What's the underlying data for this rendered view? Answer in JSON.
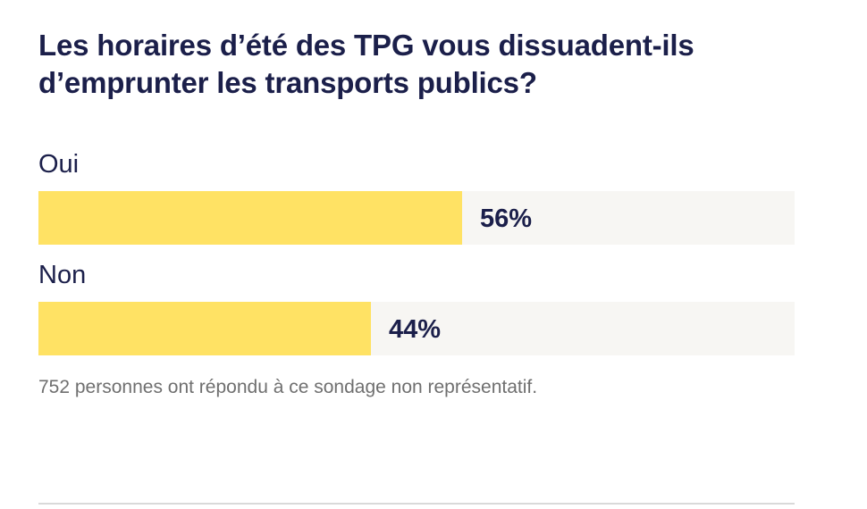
{
  "question": "Les horaires d’été des TPG vous dissuadent-ils d’emprunter les transports publics?",
  "note": "752 personnes ont répondu à ce sondage non représentatif.",
  "colors": {
    "bar_fill": "#ffe264",
    "bar_track": "#f7f6f3",
    "text": "#1b1f4a",
    "note": "#6f6f6f"
  },
  "options": [
    {
      "label": "Oui",
      "value_label": "56%"
    },
    {
      "label": "Non",
      "value_label": "44%"
    }
  ],
  "chart_data": {
    "type": "bar",
    "title": "Les horaires d’été des TPG vous dissuadent-ils d’emprunter les transports publics?",
    "categories": [
      "Oui",
      "Non"
    ],
    "values": [
      56,
      44
    ],
    "unit": "%",
    "ylim": [
      0,
      100
    ],
    "orientation": "horizontal",
    "grid": false
  }
}
